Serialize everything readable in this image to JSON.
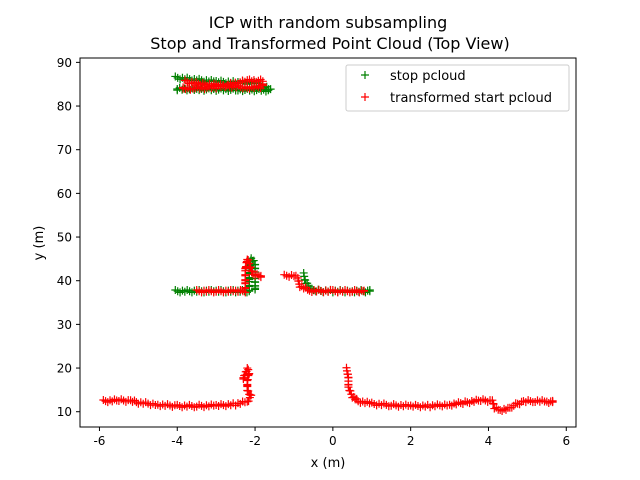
{
  "chart_data": {
    "type": "scatter",
    "title": "ICP with random subsampling",
    "subtitle": "Stop and Transformed Point Cloud (Top View)",
    "xlabel": "x (m)",
    "ylabel": "y (m)",
    "xlim": [
      -6.5,
      6.25
    ],
    "ylim": [
      6.5,
      91
    ],
    "xticks": [
      -6,
      -4,
      -2,
      0,
      2,
      4,
      6
    ],
    "yticks": [
      10,
      20,
      30,
      40,
      50,
      60,
      70,
      80,
      90
    ],
    "marker": "+",
    "grid": false,
    "legend_position": "top-right",
    "series": [
      {
        "name": "stop pcloud",
        "color": "#008000",
        "segments": [
          [
            [
              -4.05,
              86.5
            ],
            [
              -3.5,
              86.0
            ],
            [
              -3.0,
              85.6
            ],
            [
              -2.5,
              85.4
            ],
            [
              -1.9,
              85.2
            ],
            [
              -1.6,
              83.6
            ],
            [
              -2.5,
              83.7
            ],
            [
              -3.5,
              83.8
            ],
            [
              -4.0,
              83.9
            ]
          ],
          [
            [
              -4.05,
              37.6
            ],
            [
              -3.5,
              37.6
            ],
            [
              -3.0,
              37.6
            ],
            [
              -2.5,
              37.6
            ],
            [
              -2.15,
              37.6
            ],
            [
              -2.15,
              40.0
            ],
            [
              -2.15,
              42.5
            ],
            [
              -2.1,
              45.0
            ],
            [
              -2.0,
              44.0
            ],
            [
              -2.0,
              40.5
            ],
            [
              -2.0,
              38.0
            ]
          ],
          [
            [
              -0.75,
              41.5
            ],
            [
              -0.7,
              39.5
            ],
            [
              -0.5,
              37.7
            ],
            [
              0.0,
              37.6
            ],
            [
              0.5,
              37.6
            ],
            [
              0.95,
              37.6
            ]
          ]
        ]
      },
      {
        "name": "transformed start pcloud",
        "color": "#ff0000",
        "segments": [
          [
            [
              -3.8,
              85.6
            ],
            [
              -3.4,
              85.0
            ],
            [
              -3.0,
              84.8
            ],
            [
              -2.6,
              84.5
            ],
            [
              -2.2,
              84.2
            ],
            [
              -1.8,
              84.4
            ],
            [
              -1.8,
              85.8
            ],
            [
              -2.2,
              85.8
            ],
            [
              -3.0,
              84.3
            ],
            [
              -3.6,
              84.0
            ],
            [
              -3.85,
              84.0
            ]
          ],
          [
            [
              -3.5,
              37.6
            ],
            [
              -3.0,
              37.6
            ],
            [
              -2.5,
              37.6
            ],
            [
              -2.25,
              37.6
            ],
            [
              -2.25,
              40.0
            ],
            [
              -2.25,
              42.5
            ],
            [
              -2.2,
              45.0
            ],
            [
              -2.05,
              41.3
            ],
            [
              -1.85,
              41.1
            ]
          ],
          [
            [
              -1.25,
              41.1
            ],
            [
              -1.0,
              41.2
            ],
            [
              -0.9,
              40.5
            ],
            [
              -0.85,
              38.8
            ],
            [
              -0.6,
              37.7
            ],
            [
              0.0,
              37.6
            ],
            [
              0.5,
              37.6
            ],
            [
              0.8,
              37.6
            ]
          ],
          [
            [
              -5.9,
              12.4
            ],
            [
              -5.5,
              12.6
            ],
            [
              -5.2,
              12.5
            ],
            [
              -5.0,
              12.1
            ],
            [
              -4.5,
              11.6
            ],
            [
              -4.0,
              11.3
            ],
            [
              -3.5,
              11.3
            ],
            [
              -3.0,
              11.4
            ],
            [
              -2.5,
              11.7
            ],
            [
              -2.2,
              12.3
            ],
            [
              -2.1,
              13.5
            ],
            [
              -2.2,
              15.0
            ],
            [
              -2.2,
              17.0
            ],
            [
              -2.15,
              19.0
            ],
            [
              -2.2,
              20.0
            ],
            [
              -2.3,
              17.5
            ]
          ],
          [
            [
              0.35,
              19.8
            ],
            [
              0.4,
              18.0
            ],
            [
              0.4,
              15.5
            ],
            [
              0.5,
              13.5
            ],
            [
              0.65,
              12.4
            ],
            [
              1.0,
              11.8
            ],
            [
              1.5,
              11.5
            ],
            [
              2.0,
              11.3
            ],
            [
              2.5,
              11.3
            ],
            [
              3.0,
              11.6
            ],
            [
              3.4,
              12.1
            ],
            [
              3.8,
              12.6
            ],
            [
              4.1,
              12.5
            ],
            [
              4.15,
              11.0
            ],
            [
              4.3,
              10.4
            ],
            [
              4.5,
              10.6
            ],
            [
              4.65,
              11.5
            ],
            [
              4.9,
              12.3
            ],
            [
              5.2,
              12.5
            ],
            [
              5.5,
              12.3
            ],
            [
              5.65,
              12.2
            ]
          ]
        ]
      }
    ]
  }
}
